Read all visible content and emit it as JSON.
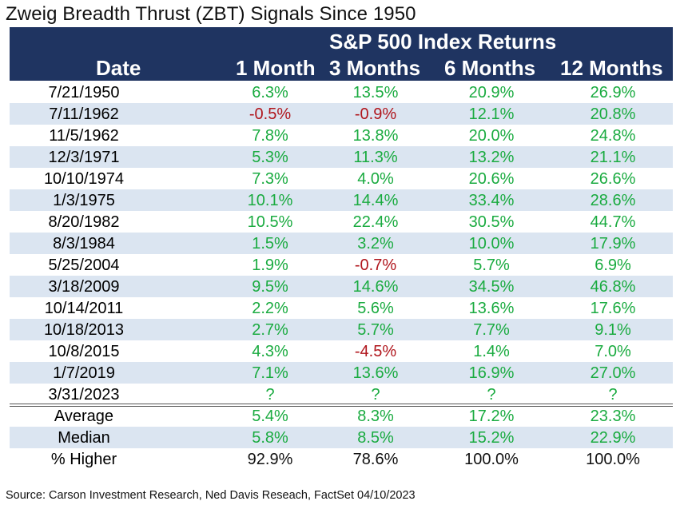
{
  "title": "Zweig Breadth Thrust (ZBT) Signals Since 1950",
  "header": {
    "group_label": "S&P 500 Index Returns",
    "columns": [
      "Date",
      "1 Month",
      "3 Months",
      "6 Months",
      "12 Months"
    ]
  },
  "rows": [
    {
      "date": "7/21/1950",
      "values": [
        "6.3%",
        "13.5%",
        "20.9%",
        "26.9%"
      ],
      "signs": [
        "pos",
        "pos",
        "pos",
        "pos"
      ]
    },
    {
      "date": "7/11/1962",
      "values": [
        "-0.5%",
        "-0.9%",
        "12.1%",
        "20.8%"
      ],
      "signs": [
        "neg",
        "neg",
        "pos",
        "pos"
      ]
    },
    {
      "date": "11/5/1962",
      "values": [
        "7.8%",
        "13.8%",
        "20.0%",
        "24.8%"
      ],
      "signs": [
        "pos",
        "pos",
        "pos",
        "pos"
      ]
    },
    {
      "date": "12/3/1971",
      "values": [
        "5.3%",
        "11.3%",
        "13.2%",
        "21.1%"
      ],
      "signs": [
        "pos",
        "pos",
        "pos",
        "pos"
      ]
    },
    {
      "date": "10/10/1974",
      "values": [
        "7.3%",
        "4.0%",
        "20.6%",
        "26.6%"
      ],
      "signs": [
        "pos",
        "pos",
        "pos",
        "pos"
      ]
    },
    {
      "date": "1/3/1975",
      "values": [
        "10.1%",
        "14.4%",
        "33.4%",
        "28.6%"
      ],
      "signs": [
        "pos",
        "pos",
        "pos",
        "pos"
      ]
    },
    {
      "date": "8/20/1982",
      "values": [
        "10.5%",
        "22.4%",
        "30.5%",
        "44.7%"
      ],
      "signs": [
        "pos",
        "pos",
        "pos",
        "pos"
      ]
    },
    {
      "date": "8/3/1984",
      "values": [
        "1.5%",
        "3.2%",
        "10.0%",
        "17.9%"
      ],
      "signs": [
        "pos",
        "pos",
        "pos",
        "pos"
      ]
    },
    {
      "date": "5/25/2004",
      "values": [
        "1.9%",
        "-0.7%",
        "5.7%",
        "6.9%"
      ],
      "signs": [
        "pos",
        "neg",
        "pos",
        "pos"
      ]
    },
    {
      "date": "3/18/2009",
      "values": [
        "9.5%",
        "14.6%",
        "34.5%",
        "46.8%"
      ],
      "signs": [
        "pos",
        "pos",
        "pos",
        "pos"
      ]
    },
    {
      "date": "10/14/2011",
      "values": [
        "2.2%",
        "5.6%",
        "13.6%",
        "17.6%"
      ],
      "signs": [
        "pos",
        "pos",
        "pos",
        "pos"
      ]
    },
    {
      "date": "10/18/2013",
      "values": [
        "2.7%",
        "5.7%",
        "7.7%",
        "9.1%"
      ],
      "signs": [
        "pos",
        "pos",
        "pos",
        "pos"
      ]
    },
    {
      "date": "10/8/2015",
      "values": [
        "4.3%",
        "-4.5%",
        "1.4%",
        "7.0%"
      ],
      "signs": [
        "pos",
        "neg",
        "pos",
        "pos"
      ]
    },
    {
      "date": "1/7/2019",
      "values": [
        "7.1%",
        "13.6%",
        "16.9%",
        "27.0%"
      ],
      "signs": [
        "pos",
        "pos",
        "pos",
        "pos"
      ]
    },
    {
      "date": "3/31/2023",
      "values": [
        "?",
        "?",
        "?",
        "?"
      ],
      "signs": [
        "pend",
        "pend",
        "pend",
        "pend"
      ]
    }
  ],
  "summary": [
    {
      "label": "Average",
      "values": [
        "5.4%",
        "8.3%",
        "17.2%",
        "23.3%"
      ],
      "signs": [
        "pos",
        "pos",
        "pos",
        "pos"
      ]
    },
    {
      "label": "Median",
      "values": [
        "5.8%",
        "8.5%",
        "15.2%",
        "22.9%"
      ],
      "signs": [
        "pos",
        "pos",
        "pos",
        "pos"
      ]
    },
    {
      "label": "% Higher",
      "values": [
        "92.9%",
        "78.6%",
        "100.0%",
        "100.0%"
      ],
      "signs": [
        "black",
        "black",
        "black",
        "black"
      ]
    }
  ],
  "source": "Source: Carson Investment Research, Ned Davis Reseach, FactSet 04/10/2023",
  "colors": {
    "header_bg": "#1f3461",
    "alt_row_bg": "#dbe5f1",
    "positive": "#1aab40",
    "negative": "#b0151c"
  }
}
